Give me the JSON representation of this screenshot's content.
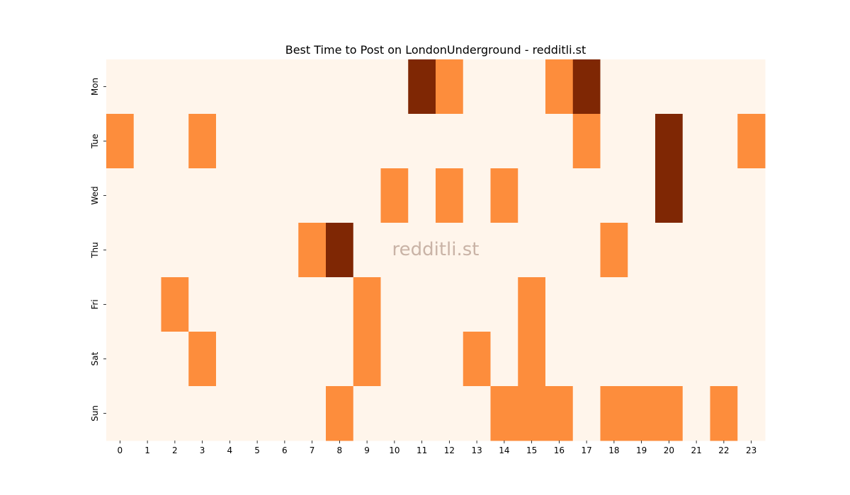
{
  "chart_data": {
    "type": "heatmap",
    "title": "Best Time to Post on LondonUnderground - redditli.st",
    "xlabel": "",
    "ylabel": "",
    "x_categories": [
      "0",
      "1",
      "2",
      "3",
      "4",
      "5",
      "6",
      "7",
      "8",
      "9",
      "10",
      "11",
      "12",
      "13",
      "14",
      "15",
      "16",
      "17",
      "18",
      "19",
      "20",
      "21",
      "22",
      "23"
    ],
    "y_categories": [
      "Mon",
      "Tue",
      "Wed",
      "Thu",
      "Fri",
      "Sat",
      "Sun"
    ],
    "values": [
      [
        0,
        0,
        0,
        0,
        0,
        0,
        0,
        0,
        0,
        0,
        0,
        2,
        1,
        0,
        0,
        0,
        1,
        2,
        0,
        0,
        0,
        0,
        0,
        0
      ],
      [
        1,
        0,
        0,
        1,
        0,
        0,
        0,
        0,
        0,
        0,
        0,
        0,
        0,
        0,
        0,
        0,
        0,
        1,
        0,
        0,
        2,
        0,
        0,
        1
      ],
      [
        0,
        0,
        0,
        0,
        0,
        0,
        0,
        0,
        0,
        0,
        1,
        0,
        1,
        0,
        1,
        0,
        0,
        0,
        0,
        0,
        2,
        0,
        0,
        0
      ],
      [
        0,
        0,
        0,
        0,
        0,
        0,
        0,
        1,
        2,
        0,
        0,
        0,
        0,
        0,
        0,
        0,
        0,
        0,
        1,
        0,
        0,
        0,
        0,
        0
      ],
      [
        0,
        0,
        1,
        0,
        0,
        0,
        0,
        0,
        0,
        1,
        0,
        0,
        0,
        0,
        0,
        1,
        0,
        0,
        0,
        0,
        0,
        0,
        0,
        0
      ],
      [
        0,
        0,
        0,
        1,
        0,
        0,
        0,
        0,
        0,
        1,
        0,
        0,
        0,
        1,
        0,
        1,
        0,
        0,
        0,
        0,
        0,
        0,
        0,
        0
      ],
      [
        0,
        0,
        0,
        0,
        0,
        0,
        0,
        0,
        1,
        0,
        0,
        0,
        0,
        0,
        1,
        1,
        1,
        0,
        1,
        1,
        1,
        0,
        1,
        0
      ]
    ],
    "colorscale": [
      "#fff5eb",
      "#fd8d3c",
      "#7f2704"
    ],
    "legend": "none",
    "grid": false,
    "watermark": "redditli.st"
  }
}
